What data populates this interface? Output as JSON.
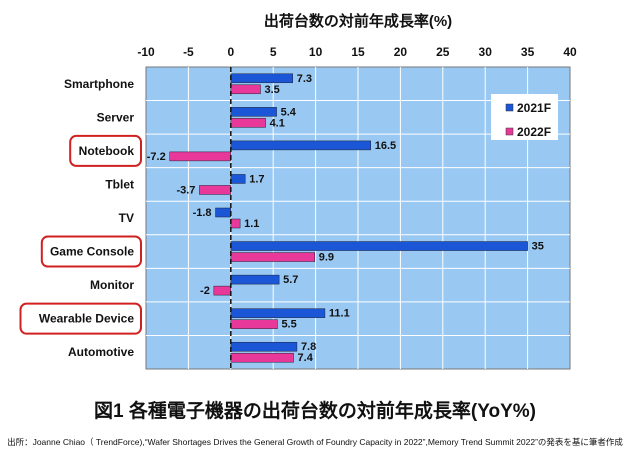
{
  "chart_data": {
    "type": "bar",
    "orientation": "horizontal",
    "title": "出荷台数の対前年成長率(%)",
    "figure_caption": "図1 各種電子機器の出荷台数の対前年成長率(YoY%)",
    "source": "出所：Joanne Chiao（ TrendForce),“Wafer Shortages Drives the General Growth of Foundry Capacity in 2022”,Memory Trend Summit 2022”の発表を基に筆者作成",
    "categories": [
      "Smartphone",
      "Server",
      "Notebook",
      "Tblet",
      "TV",
      "Game Console",
      "Monitor",
      "Wearable Device",
      "Automotive"
    ],
    "highlighted": [
      "Notebook",
      "Game Console",
      "Wearable Device"
    ],
    "series": [
      {
        "name": "2021F",
        "color": "#1a56d6",
        "values": [
          7.3,
          5.4,
          16.5,
          1.7,
          -1.8,
          35,
          5.7,
          11.1,
          7.8
        ]
      },
      {
        "name": "2022F",
        "color": "#e8389a",
        "values": [
          3.5,
          4.1,
          -7.2,
          -3.7,
          1.1,
          9.9,
          -2,
          5.5,
          7.4
        ]
      }
    ],
    "xlim": [
      -10,
      40
    ],
    "xticks": [
      -10,
      -5,
      0,
      5,
      10,
      15,
      20,
      25,
      30,
      35,
      40
    ],
    "axis_position": "top",
    "grid": true,
    "legend_placement": "top-right",
    "plot_bg": "#99c9f3",
    "highlight_color": "#d02020"
  }
}
